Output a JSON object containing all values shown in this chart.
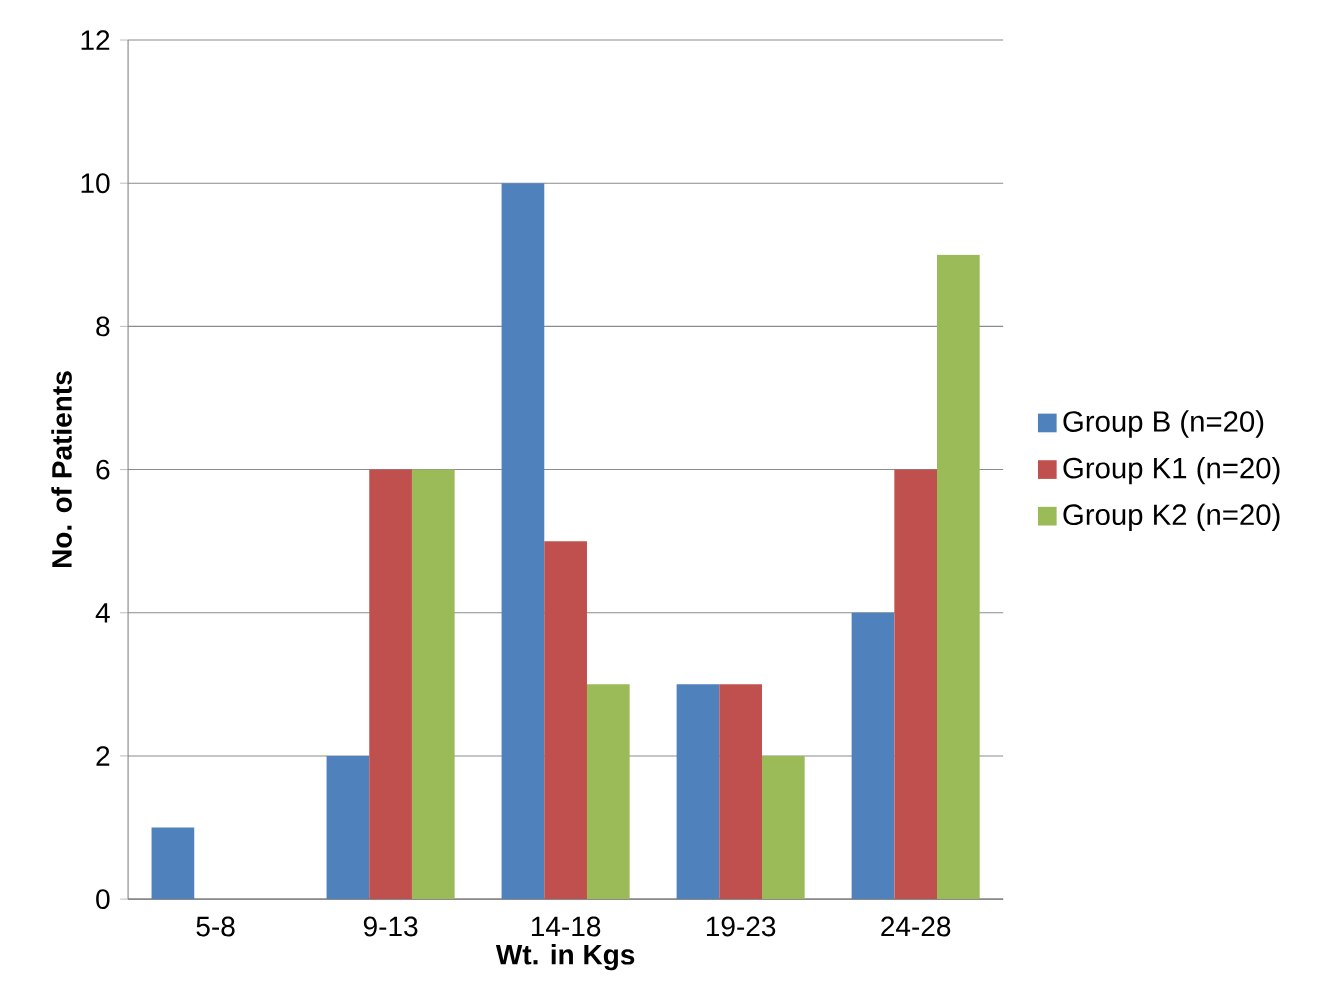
{
  "chart_data": {
    "type": "bar",
    "xlabel": "Wt. in Kgs",
    "ylabel": "No. of Patients",
    "categories": [
      "5-8",
      "9-13",
      "14-18",
      "19-23",
      "24-28"
    ],
    "series": [
      {
        "name": "Group B  (n=20)",
        "color": "#4f81bd",
        "values": [
          1,
          2,
          10,
          3,
          4
        ]
      },
      {
        "name": "Group K1 (n=20)",
        "color": "#c0504d",
        "values": [
          0,
          6,
          5,
          3,
          6
        ]
      },
      {
        "name": "Group K2 (n=20)",
        "color": "#9bbb59",
        "values": [
          0,
          6,
          3,
          2,
          9
        ]
      }
    ],
    "ylim": [
      0,
      12
    ],
    "yticks": [
      0,
      2,
      4,
      6,
      8,
      10,
      12
    ],
    "grid": "y",
    "legend": "right"
  }
}
